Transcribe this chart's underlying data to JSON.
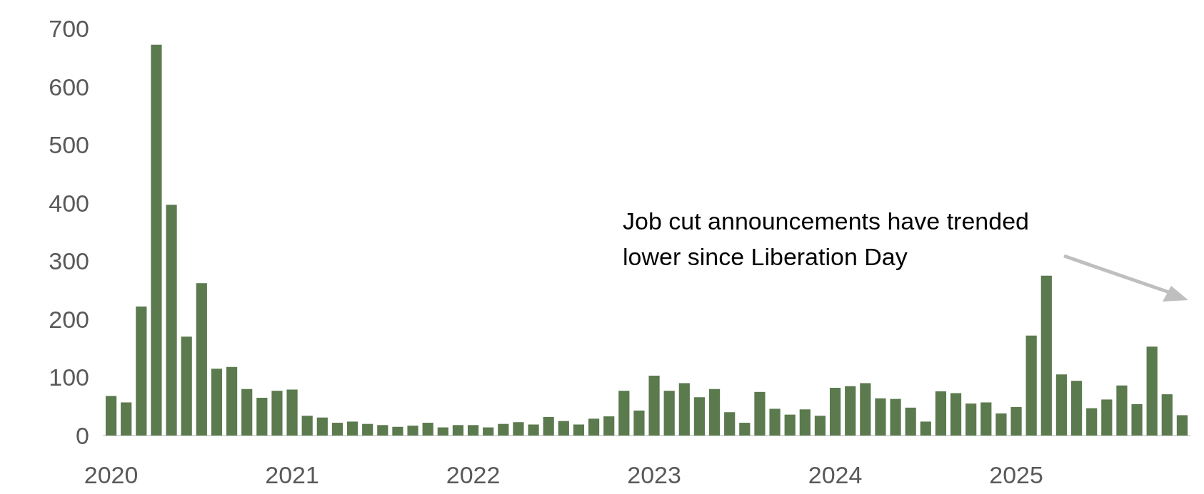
{
  "chart_data": {
    "type": "bar",
    "categories": [
      "2020",
      null,
      null,
      null,
      null,
      null,
      null,
      null,
      null,
      null,
      null,
      null,
      "2021",
      null,
      null,
      null,
      null,
      null,
      null,
      null,
      null,
      null,
      null,
      null,
      "2022",
      null,
      null,
      null,
      null,
      null,
      null,
      null,
      null,
      null,
      null,
      null,
      "2023",
      null,
      null,
      null,
      null,
      null,
      null,
      null,
      null,
      null,
      null,
      null,
      "2024",
      null,
      null,
      null,
      null,
      null,
      null,
      null,
      null,
      null,
      null,
      null,
      "2025",
      null,
      null,
      null,
      null,
      null,
      null,
      null,
      null,
      null,
      null,
      null
    ],
    "values": [
      68,
      57,
      222,
      672,
      397,
      170,
      262,
      115,
      118,
      80,
      65,
      77,
      79,
      34,
      31,
      22,
      24,
      20,
      18,
      15,
      17,
      22,
      14,
      18,
      18,
      14,
      20,
      23,
      19,
      32,
      25,
      19,
      29,
      33,
      77,
      43,
      103,
      77,
      90,
      66,
      80,
      40,
      22,
      75,
      46,
      36,
      45,
      34,
      82,
      85,
      90,
      64,
      63,
      48,
      24,
      76,
      73,
      55,
      57,
      38,
      49,
      172,
      275,
      105,
      94,
      47,
      62,
      86,
      54,
      153,
      71,
      35
    ],
    "color": "#5b7a4e",
    "ylim": [
      0,
      700
    ],
    "yticks": [
      0,
      100,
      200,
      300,
      400,
      500,
      600,
      700
    ],
    "grid": false,
    "annotations": [
      "Job cut announcements have trended\nlower since Liberation Day"
    ]
  }
}
